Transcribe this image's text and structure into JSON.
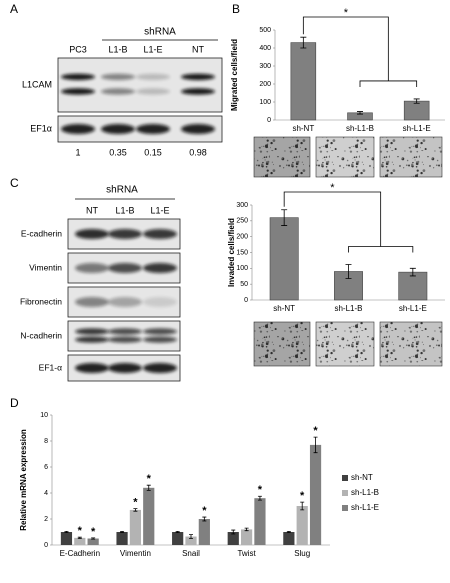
{
  "panel_labels": [
    "A",
    "B",
    "C",
    "D"
  ],
  "blot_a": {
    "group_label": "shRNA",
    "lanes": [
      "PC3",
      "L1-B",
      "L1-E",
      "NT"
    ],
    "rows": [
      "L1CAM",
      "EF1α"
    ],
    "quantification": [
      1,
      0.35,
      0.15,
      0.98
    ]
  },
  "blot_c": {
    "group_label": "shRNA",
    "lanes": [
      "NT",
      "L1-B",
      "L1-E"
    ],
    "rows": [
      "E-cadherin",
      "Vimentin",
      "Fibronectin",
      "N-cadherin",
      "EF1-α"
    ]
  },
  "chart_data": [
    {
      "type": "bar",
      "y_label": "Migrated cells/field",
      "categories": [
        "sh-NT",
        "sh-L1-B",
        "sh-L1-E"
      ],
      "values": [
        430,
        40,
        105
      ],
      "errors": [
        30,
        7,
        12
      ],
      "color": "#808080",
      "ylim": [
        0,
        500
      ],
      "yticks": [
        0,
        100,
        200,
        300,
        400,
        500
      ],
      "annotation": "*"
    },
    {
      "type": "bar",
      "y_label": "Invaded cells/field",
      "categories": [
        "sh-NT",
        "sh-L1-B",
        "sh-L1-E"
      ],
      "values": [
        260,
        90,
        88
      ],
      "errors": [
        25,
        22,
        12
      ],
      "color": "#808080",
      "ylim": [
        0,
        300
      ],
      "yticks": [
        0,
        50,
        100,
        150,
        200,
        250,
        300
      ],
      "annotation": "*"
    },
    {
      "type": "bar",
      "y_label": "Relative mRNA expression",
      "categories": [
        "E-Cadherin",
        "Vimentin",
        "Snail",
        "Twist",
        "Slug"
      ],
      "series": [
        {
          "name": "sh-NT",
          "color": "#404040",
          "values": [
            1,
            1,
            1,
            1,
            1
          ],
          "errors": [
            0.05,
            0.05,
            0.05,
            0.15,
            0.05
          ],
          "annotations": [
            null,
            null,
            null,
            null,
            null
          ]
        },
        {
          "name": "sh-L1-B",
          "color": "#b3b3b3",
          "values": [
            0.55,
            2.7,
            0.65,
            1.2,
            3.0
          ],
          "errors": [
            0.05,
            0.1,
            0.15,
            0.1,
            0.3
          ],
          "annotations": [
            "*",
            "*",
            null,
            null,
            "*"
          ]
        },
        {
          "name": "sh-L1-E",
          "color": "#808080",
          "values": [
            0.5,
            4.4,
            2.0,
            3.6,
            7.7
          ],
          "errors": [
            0.05,
            0.2,
            0.15,
            0.15,
            0.6
          ],
          "annotations": [
            "*",
            "*",
            "*",
            "*",
            "*"
          ]
        }
      ],
      "ylim": [
        0,
        10
      ],
      "yticks": [
        0,
        2,
        4,
        6,
        8,
        10
      ],
      "legend": "right"
    }
  ]
}
